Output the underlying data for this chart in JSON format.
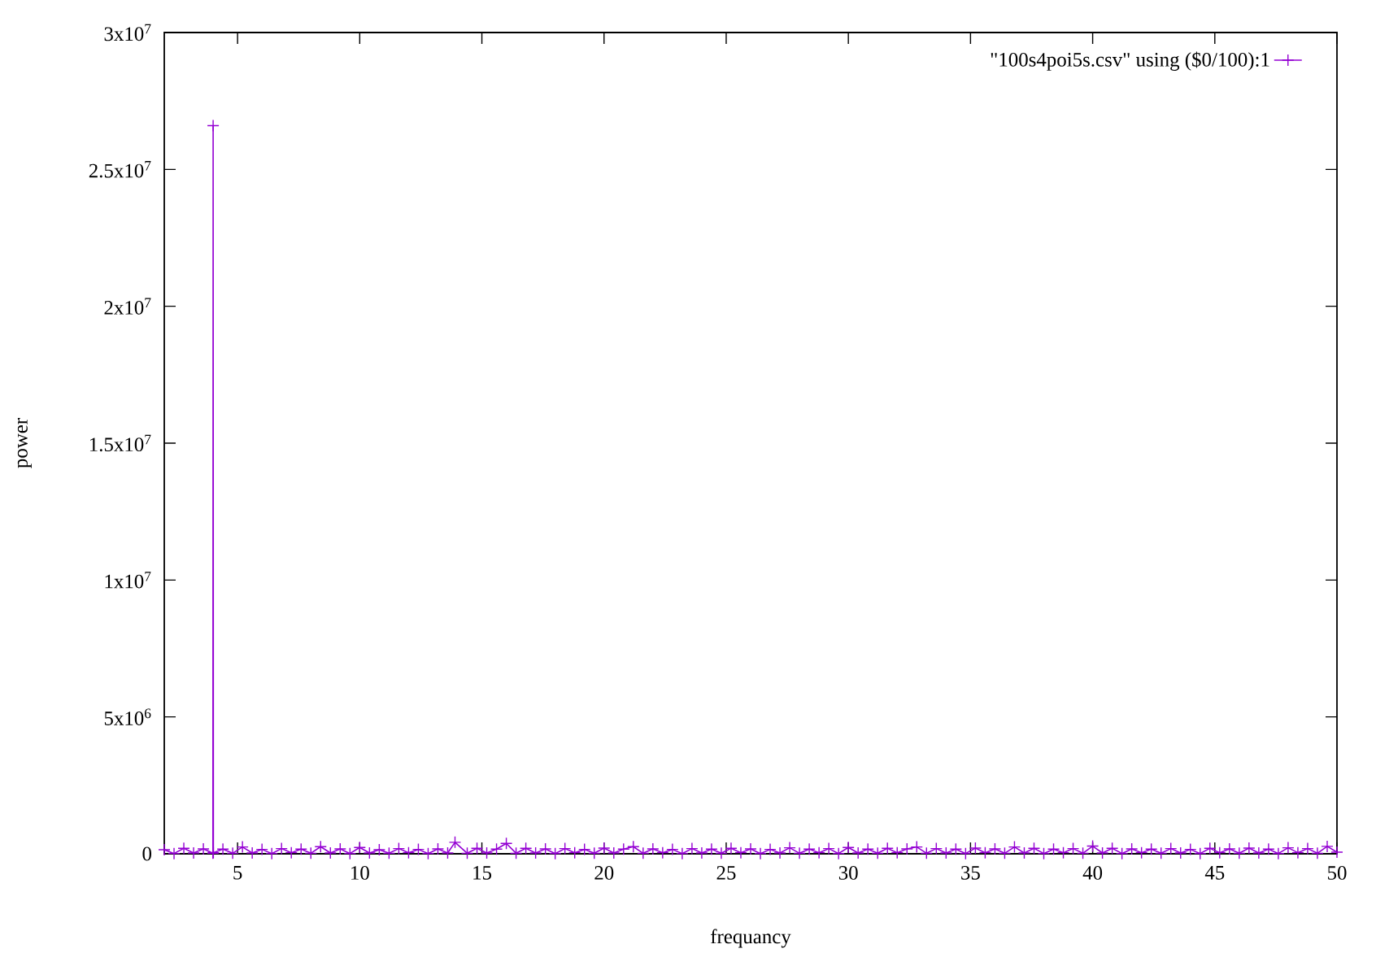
{
  "chart_data": {
    "type": "line",
    "xlabel": "frequancy",
    "ylabel": "power",
    "x": [
      2.0,
      2.4,
      2.8,
      3.2,
      3.6,
      3.99,
      4.0,
      4.01,
      4.4,
      4.8,
      5.2,
      5.6,
      6.0,
      6.4,
      6.8,
      7.2,
      7.6,
      8.0,
      8.4,
      8.8,
      9.2,
      9.6,
      10.0,
      10.4,
      10.8,
      11.2,
      11.6,
      12.0,
      12.4,
      12.8,
      13.2,
      13.6,
      13.9,
      14.4,
      14.8,
      15.2,
      15.6,
      16.0,
      16.4,
      16.8,
      17.2,
      17.6,
      18.0,
      18.4,
      18.8,
      19.2,
      19.6,
      20.0,
      20.4,
      20.8,
      21.2,
      21.6,
      22.0,
      22.4,
      22.8,
      23.2,
      23.6,
      24.0,
      24.4,
      24.8,
      25.2,
      25.6,
      26.0,
      26.4,
      26.8,
      27.2,
      27.6,
      28.0,
      28.4,
      28.8,
      29.2,
      29.6,
      30.0,
      30.4,
      30.8,
      31.2,
      31.6,
      32.0,
      32.4,
      32.8,
      33.2,
      33.6,
      34.0,
      34.4,
      34.8,
      35.2,
      35.6,
      36.0,
      36.4,
      36.8,
      37.2,
      37.6,
      38.0,
      38.4,
      38.8,
      39.2,
      39.6,
      40.0,
      40.4,
      40.8,
      41.2,
      41.6,
      42.0,
      42.4,
      42.8,
      43.2,
      43.6,
      44.0,
      44.4,
      44.8,
      45.2,
      45.6,
      46.0,
      46.4,
      46.8,
      47.2,
      47.6,
      48.0,
      48.4,
      48.8,
      49.2,
      49.6,
      50.0
    ],
    "series": [
      {
        "name": "\"100s4poi5s.csv\" using ($0/100):1",
        "color": "#9400d3",
        "values": [
          150000,
          10000,
          200000,
          30000,
          180000,
          20000,
          26600000,
          40000,
          170000,
          20000,
          250000,
          30000,
          160000,
          10000,
          190000,
          40000,
          170000,
          20000,
          260000,
          30000,
          180000,
          10000,
          230000,
          30000,
          150000,
          20000,
          190000,
          40000,
          160000,
          10000,
          180000,
          30000,
          420000,
          20000,
          200000,
          30000,
          170000,
          380000,
          20000,
          200000,
          30000,
          180000,
          10000,
          190000,
          40000,
          160000,
          20000,
          210000,
          30000,
          170000,
          260000,
          20000,
          180000,
          40000,
          160000,
          10000,
          190000,
          30000,
          170000,
          20000,
          200000,
          40000,
          180000,
          10000,
          160000,
          30000,
          220000,
          20000,
          170000,
          40000,
          190000,
          10000,
          230000,
          30000,
          170000,
          20000,
          200000,
          40000,
          180000,
          250000,
          20000,
          190000,
          30000,
          170000,
          10000,
          210000,
          40000,
          180000,
          20000,
          250000,
          30000,
          200000,
          10000,
          170000,
          40000,
          190000,
          20000,
          280000,
          30000,
          200000,
          10000,
          180000,
          40000,
          170000,
          20000,
          190000,
          30000,
          160000,
          10000,
          200000,
          40000,
          180000,
          20000,
          210000,
          30000,
          170000,
          10000,
          220000,
          40000,
          190000,
          20000,
          270000,
          60000
        ]
      }
    ],
    "xlim": [
      2,
      50
    ],
    "xticks": [
      5,
      10,
      15,
      20,
      25,
      30,
      35,
      40,
      45,
      50
    ],
    "ylim": [
      0,
      30000000
    ],
    "yticks": [
      0,
      {
        "value": 5000000,
        "label": "5x10$^{6}$"
      },
      {
        "value": 10000000,
        "label": "1x10$^{7}$"
      },
      {
        "value": 15000000,
        "label": "1.5x10$^{7}$"
      },
      {
        "value": 20000000,
        "label": "2x10$^{7}$"
      },
      {
        "value": 25000000,
        "label": "2.5x10$^{7}$"
      },
      {
        "value": 30000000,
        "label": "3x10$^{7}$"
      }
    ],
    "legend": "top right",
    "marker": "cross",
    "line_style": "solid"
  }
}
